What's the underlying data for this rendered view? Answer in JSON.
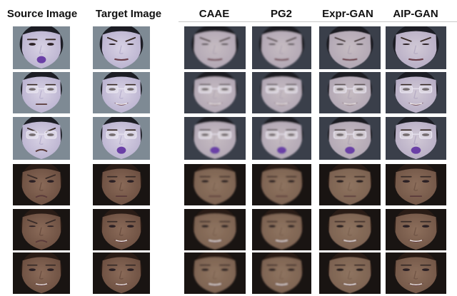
{
  "figure": {
    "column_headers": [
      "Source Image",
      "Target Image",
      "CAAE",
      "PG2",
      "Expr-GAN",
      "AIP-GAN"
    ],
    "rows": [
      {
        "subject": "asian-female",
        "source": "mouth-open",
        "target": "grimace"
      },
      {
        "subject": "asian-male-glasses",
        "source": "neutral",
        "target": "smile"
      },
      {
        "subject": "asian-male-glasses",
        "source": "frown",
        "target": "mouth-open"
      },
      {
        "subject": "caucasian-male",
        "source": "frown",
        "target": "neutral"
      },
      {
        "subject": "caucasian-male",
        "source": "angry",
        "target": "smile"
      },
      {
        "subject": "caucasian-male",
        "source": "smile",
        "target": "smile"
      }
    ]
  },
  "colors": {
    "asian_skin": "#d8d2e4",
    "asian_skin_shade": "#b9b1cf",
    "asian_hair": "#1c1d24",
    "asian_bg": "#7e8a94",
    "caucasian_skin": "#8a6a58",
    "caucasian_skin_shade": "#6b4e40",
    "caucasian_hair": "#2a1c16",
    "caucasian_bg": "#191412",
    "generated_tint": "#9c8a72",
    "mouth_purple": "#6a3fa6"
  }
}
